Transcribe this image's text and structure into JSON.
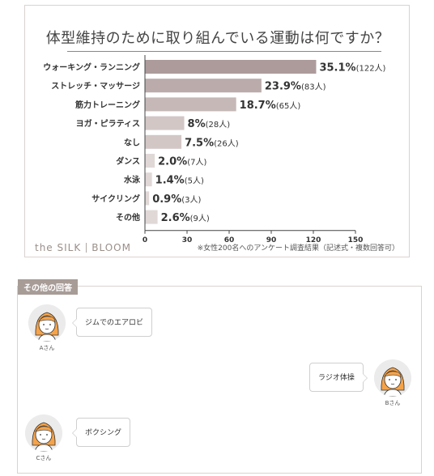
{
  "chart_data": {
    "type": "bar",
    "orientation": "horizontal",
    "title": "体型維持のために取り組んでいる運動は何ですか？",
    "categories": [
      "ウォーキング・ランニング",
      "ストレッチ・マッサージ",
      "筋力トレーニング",
      "ヨガ・ピラティス",
      "なし",
      "ダンス",
      "水泳",
      "サイクリング",
      "その他"
    ],
    "values": [
      122,
      83,
      65,
      28,
      26,
      7,
      5,
      3,
      9
    ],
    "percent_labels": [
      "35.1%",
      "23.9%",
      "18.7%",
      "8%",
      "7.5%",
      "2.0%",
      "1.4%",
      "0.9%",
      "2.6%"
    ],
    "count_labels": [
      "(122人)",
      "(83人)",
      "(65人)",
      "(28人)",
      "(26人)",
      "(7人)",
      "(5人)",
      "(3人)",
      "(9人)"
    ],
    "bar_colors": [
      "#ad9b9b",
      "#bbacab",
      "#c5b8b7",
      "#d3c7c6",
      "#d3c7c6",
      "#e0d8d7",
      "#e0d8d7",
      "#e0d8d7",
      "#e0d8d7"
    ],
    "xlim": [
      0,
      150
    ],
    "xticks": [
      "0",
      "30",
      "60",
      "90",
      "120",
      "150"
    ],
    "grid": false
  },
  "brand": {
    "left": "the SILK",
    "right": "BLOOM"
  },
  "footnote": "※女性200名へのアンケート調査結果（記述式・複数回答可）",
  "other_answers": {
    "tag": "その他の回答",
    "items": [
      {
        "name": "Aさん",
        "text": "ジムでのエアロビ"
      },
      {
        "name": "Bさん",
        "text": "ラジオ体操"
      },
      {
        "name": "Cさん",
        "text": "ボクシング"
      }
    ]
  },
  "colors": {
    "axis": "#444444",
    "accent_tag": "#a89c97",
    "hair": "#f5a34a",
    "avatar_bg": "#ebebeb"
  }
}
